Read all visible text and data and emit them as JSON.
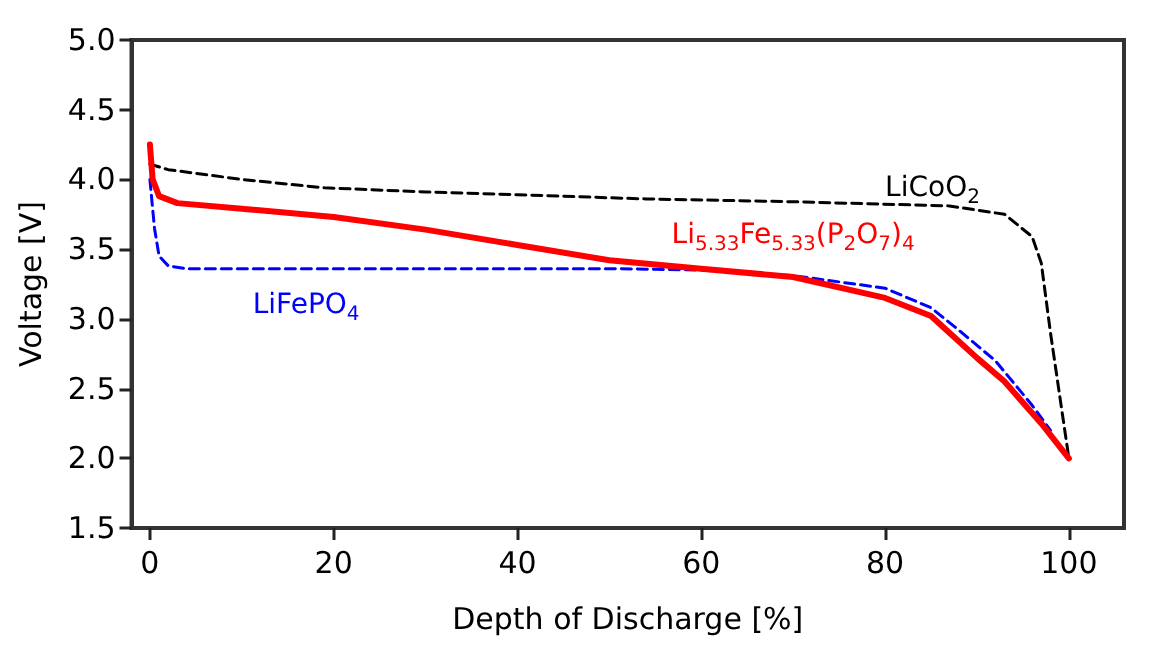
{
  "chart_data": {
    "type": "line",
    "xlabel": "Depth of Discharge [%]",
    "ylabel": "Voltage [V]",
    "xlim": [
      -2,
      106
    ],
    "xticks": [
      0,
      20,
      40,
      60,
      80,
      100
    ],
    "ylim": [
      1.5,
      5.0
    ],
    "yticks": [
      1.5,
      {
        "value": 2,
        "label": "2.0"
      },
      2.5,
      {
        "value": 3,
        "label": "3.0"
      },
      3.5,
      {
        "value": 4,
        "label": "4.0"
      },
      4.5,
      {
        "value": 5,
        "label": "5.0"
      }
    ],
    "grid": false,
    "legend": false,
    "marker": "none",
    "series": [
      {
        "name": "LiCoO$_{2}$",
        "color": "#000000",
        "line_style": "dashed",
        "x": [
          0,
          2,
          10,
          19,
          30,
          40,
          54,
          70,
          87,
          93,
          96,
          97,
          98,
          99,
          100
        ],
        "values": [
          4.11,
          4.07,
          4.0,
          3.94,
          3.91,
          3.89,
          3.86,
          3.84,
          3.81,
          3.75,
          3.59,
          3.4,
          2.9,
          2.45,
          2.0
        ]
      },
      {
        "name": "Li$_{5.33}$Fe$_{5.33}$(P$_{2}$O$_{7}$)$_{4}$",
        "color": "#ff0000",
        "line_style": "solid",
        "x": [
          0,
          0.3,
          1,
          3,
          10,
          20,
          30,
          40,
          50,
          60,
          70,
          80,
          85,
          87,
          90,
          93,
          97,
          100
        ],
        "values": [
          4.25,
          4.0,
          3.88,
          3.83,
          3.79,
          3.73,
          3.64,
          3.53,
          3.42,
          3.36,
          3.3,
          3.15,
          3.02,
          2.9,
          2.72,
          2.55,
          2.25,
          2.0
        ]
      },
      {
        "name": "LiFePO$_{4}$",
        "color": "#0000ff",
        "line_style": "dashed",
        "x": [
          0,
          0.5,
          1,
          2,
          4,
          50,
          60,
          70,
          80,
          85,
          88,
          92,
          96,
          98
        ],
        "values": [
          4.0,
          3.65,
          3.45,
          3.38,
          3.36,
          3.36,
          3.35,
          3.31,
          3.22,
          3.08,
          2.92,
          2.7,
          2.38,
          2.2
        ]
      }
    ]
  }
}
